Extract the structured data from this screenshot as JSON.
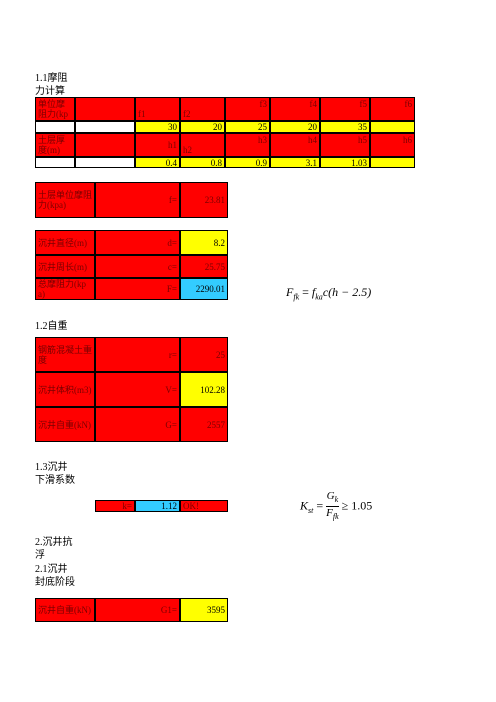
{
  "section_1_1": {
    "title": [
      "1.1摩阻",
      "力计算"
    ],
    "table": {
      "friction_header": {
        "label": "单位摩阻力(kpa)",
        "cells": [
          "f1",
          "f2",
          "f3",
          "f4",
          "f5",
          "f6"
        ]
      },
      "friction_values": [
        "30",
        "20",
        "25",
        "20",
        "35"
      ],
      "thickness_header": {
        "label": "土层厚度(m)",
        "cells": [
          "h1",
          "h2",
          "h3",
          "h4",
          "h5",
          "h6"
        ]
      },
      "thickness_values": [
        "0.4",
        "0.8",
        "0.9",
        "3.1",
        "1.03"
      ]
    },
    "unit_friction": {
      "label": "土层单位摩阻力(kpa)",
      "symbol": "f=",
      "value": "23.81"
    },
    "items": [
      {
        "label": "沉井直径(m)",
        "symbol": "d=",
        "value": "8.2"
      },
      {
        "label": "沉井周长(m)",
        "symbol": "c=",
        "value": "25.75"
      },
      {
        "label": "总摩阻力(kpa)",
        "symbol": "F=",
        "value": "2290.01"
      }
    ],
    "formula": {
      "lhs": "F",
      "lhs_sub": "fk",
      "eq": "=",
      "f": "f",
      "f_sub": "ka",
      "rest": "c(h − 2.5)"
    }
  },
  "section_1_2": {
    "title": "1.2自重",
    "items": [
      {
        "label": "钢筋混凝土重度",
        "symbol": "r=",
        "value": "25"
      },
      {
        "label": "沉井体积(m3)",
        "symbol": "V=",
        "value": "102.28"
      },
      {
        "label": "沉井自重(kN)",
        "symbol": "G=",
        "value": "2557"
      }
    ]
  },
  "section_1_3": {
    "title": [
      "1.3沉井",
      "下滑系数"
    ],
    "row": {
      "symbol": "k=",
      "value": "1.12",
      "status": "OK!"
    },
    "formula": {
      "lhs": "K",
      "lhs_sub": "st",
      "eq": "=",
      "num": "G",
      "num_sub": "k",
      "den": "F",
      "den_sub": "fk",
      "rel": "≥ 1.05"
    }
  },
  "section_2": {
    "title": [
      "2.沉井抗",
      "浮"
    ],
    "subtitle": [
      "2.1沉井",
      "封底阶段"
    ],
    "row": {
      "label": "沉井自重(kN)",
      "symbol": "G1=",
      "value": "3595"
    }
  }
}
